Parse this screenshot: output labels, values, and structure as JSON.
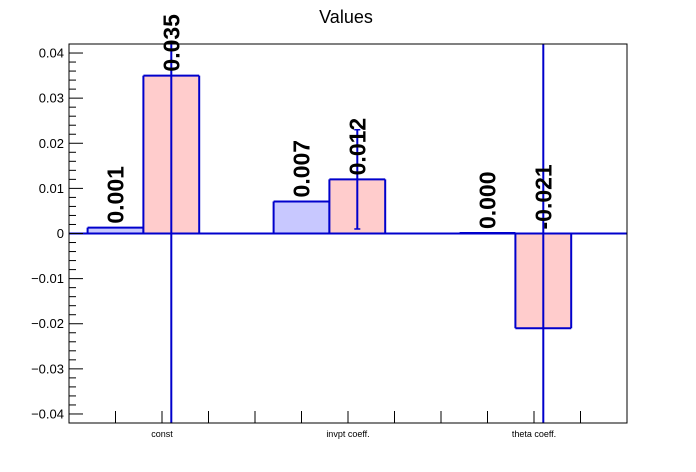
{
  "chart_data": {
    "type": "bar",
    "title": "Values",
    "categories": [
      "const",
      "invpt coeff.",
      "theta coeff."
    ],
    "series": [
      {
        "values": [
          0.001,
          0.007,
          0.0
        ],
        "labels": [
          "0.001",
          "0.007",
          "0.000"
        ],
        "fill": "#c8c8ff",
        "stroke": "#0000cc"
      },
      {
        "values": [
          0.035,
          0.012,
          -0.021
        ],
        "labels": [
          "0.035",
          "0.012",
          "-0.021"
        ],
        "errors": [
          0.25,
          0.011,
          0.25
        ],
        "fill": "#ffcccc",
        "stroke": "#0000cc"
      }
    ],
    "secondary_values": [
      0.0013,
      0.0071,
      0.0001
    ],
    "ylim": [
      -0.042,
      0.042
    ],
    "yticks": [
      -0.04,
      -0.03,
      -0.02,
      -0.01,
      0,
      0.01,
      0.02,
      0.03,
      0.04
    ],
    "ytick_labels": [
      "−0.04",
      "−0.03",
      "−0.02",
      "−0.01",
      "0",
      "0.01",
      "0.02",
      "0.03",
      "0.04"
    ],
    "grid": false,
    "legend": "none"
  }
}
